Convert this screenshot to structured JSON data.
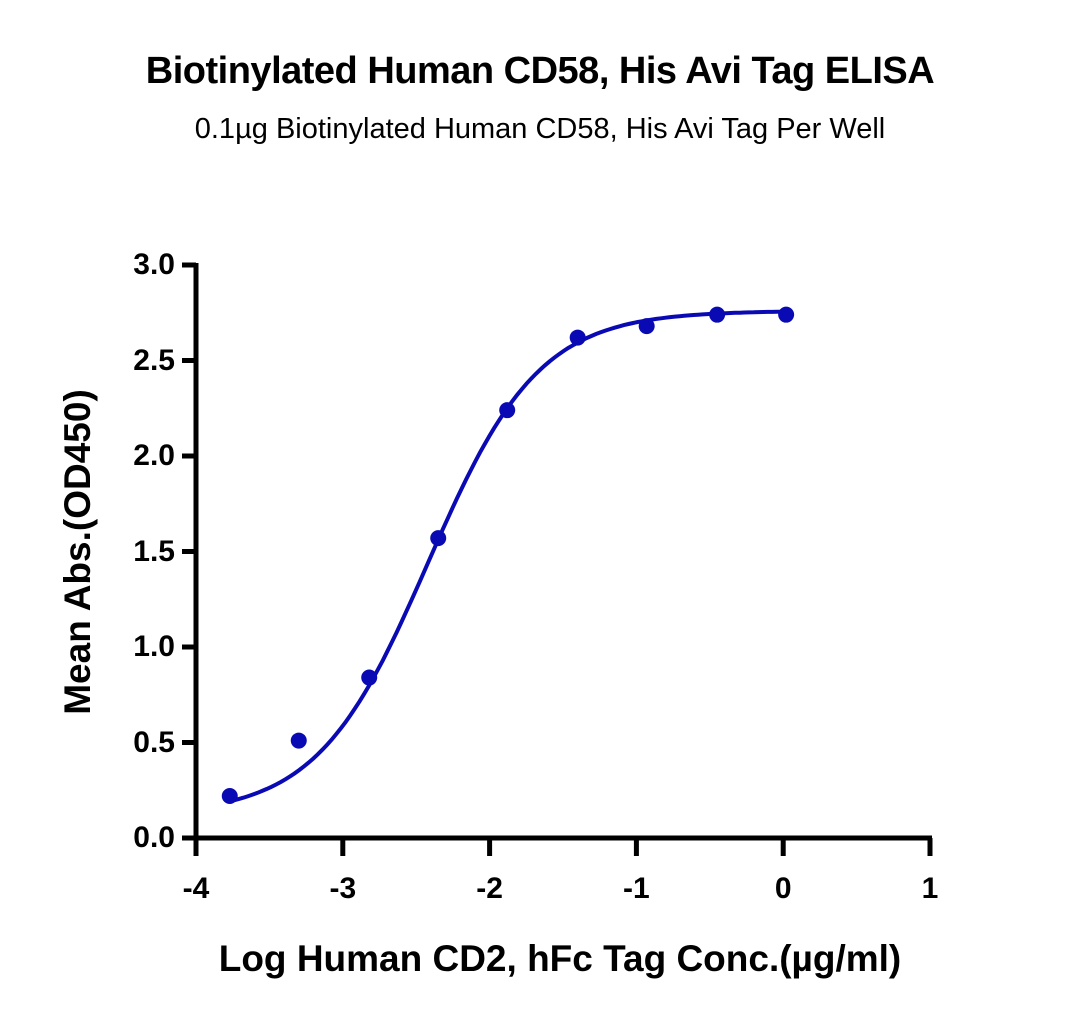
{
  "chart_data": {
    "type": "scatter",
    "title": "Biotinylated Human CD58, His Avi Tag ELISA",
    "subtitle": "0.1µg Biotinylated Human CD58, His Avi Tag Per Well",
    "xlabel": "Log Human CD2, hFc Tag Conc.(µg/ml)",
    "ylabel": "Mean Abs.(OD450)",
    "xlim": [
      -4,
      1
    ],
    "ylim": [
      0,
      3.0
    ],
    "x_ticks": [
      "-4",
      "-3",
      "-2",
      "-1",
      "0",
      "1"
    ],
    "y_ticks": [
      "0.0",
      "0.5",
      "1.0",
      "1.5",
      "2.0",
      "2.5",
      "3.0"
    ],
    "grid": false,
    "series": [
      {
        "name": "Biotinylated Human CD58, His Avi Tag",
        "color": "#0a0ab4",
        "fit": "4PL sigmoid",
        "x": [
          -3.77,
          -3.3,
          -2.82,
          -2.35,
          -1.88,
          -1.4,
          -0.93,
          -0.45,
          0.02
        ],
        "y": [
          0.22,
          0.51,
          0.84,
          1.57,
          2.24,
          2.62,
          2.68,
          2.74,
          2.74
        ]
      }
    ]
  }
}
